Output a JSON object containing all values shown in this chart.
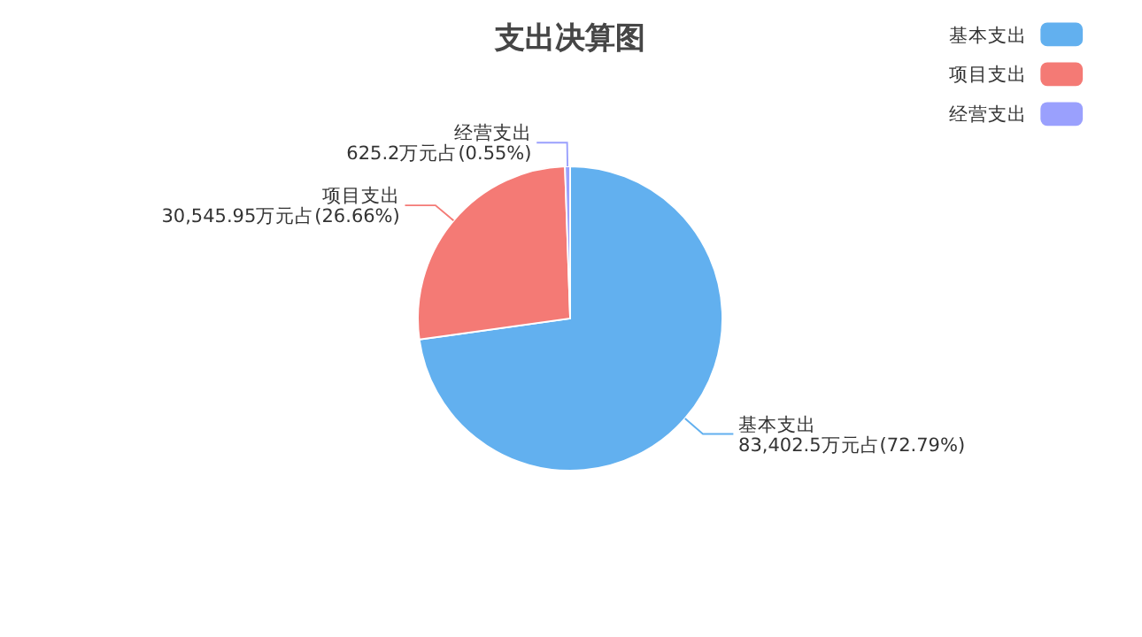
{
  "chart_data": {
    "type": "pie",
    "title": "支出决算图",
    "categories": [
      "基本支出",
      "项目支出",
      "经营支出"
    ],
    "values": [
      83402.5,
      30545.95,
      625.2
    ],
    "colors": [
      "#62b0ef",
      "#f47a75",
      "#9aa0fd"
    ],
    "value_labels": [
      "83,402.5万元占(72.79%)",
      "30,545.95万元占(26.66%)",
      "625.2万元占(0.55%)"
    ],
    "legend": "top right"
  }
}
